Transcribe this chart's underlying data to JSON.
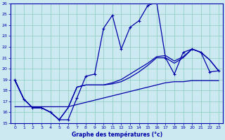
{
  "xlabel": "Graphe des températures (°c)",
  "xlim": [
    -0.5,
    23.5
  ],
  "ylim": [
    15,
    26
  ],
  "yticks": [
    15,
    16,
    17,
    18,
    19,
    20,
    21,
    22,
    23,
    24,
    25,
    26
  ],
  "xticks": [
    0,
    1,
    2,
    3,
    4,
    5,
    6,
    7,
    8,
    9,
    10,
    11,
    12,
    13,
    14,
    15,
    16,
    17,
    18,
    19,
    20,
    21,
    22,
    23
  ],
  "bg_color": "#cce8f0",
  "line_color": "#0000aa",
  "grid_color": "#88ccbb",
  "line_main": [
    19.0,
    17.2,
    16.4,
    16.4,
    16.0,
    15.3,
    15.3,
    17.3,
    19.3,
    19.5,
    23.7,
    24.9,
    21.8,
    23.8,
    24.4,
    25.8,
    26.1,
    21.0,
    19.5,
    21.5,
    21.8,
    21.5,
    19.7,
    19.8
  ],
  "line_low": [
    16.5,
    16.5,
    16.5,
    16.5,
    16.5,
    16.5,
    16.5,
    16.7,
    16.9,
    17.1,
    17.3,
    17.5,
    17.7,
    17.9,
    18.1,
    18.3,
    18.5,
    18.7,
    18.8,
    18.8,
    18.9,
    18.9,
    18.9,
    18.9
  ],
  "line_mid1": [
    18.9,
    17.2,
    16.4,
    16.4,
    16.0,
    15.3,
    16.4,
    18.3,
    18.5,
    18.5,
    18.5,
    18.6,
    18.8,
    19.2,
    19.7,
    20.3,
    21.0,
    21.0,
    20.5,
    21.0,
    21.8,
    21.5,
    20.8,
    19.8
  ],
  "line_mid2": [
    18.9,
    17.2,
    16.4,
    16.4,
    16.0,
    15.3,
    16.4,
    18.3,
    18.5,
    18.5,
    18.5,
    18.7,
    19.0,
    19.5,
    20.0,
    20.5,
    21.1,
    21.2,
    20.7,
    21.1,
    21.8,
    21.5,
    20.8,
    19.8
  ]
}
